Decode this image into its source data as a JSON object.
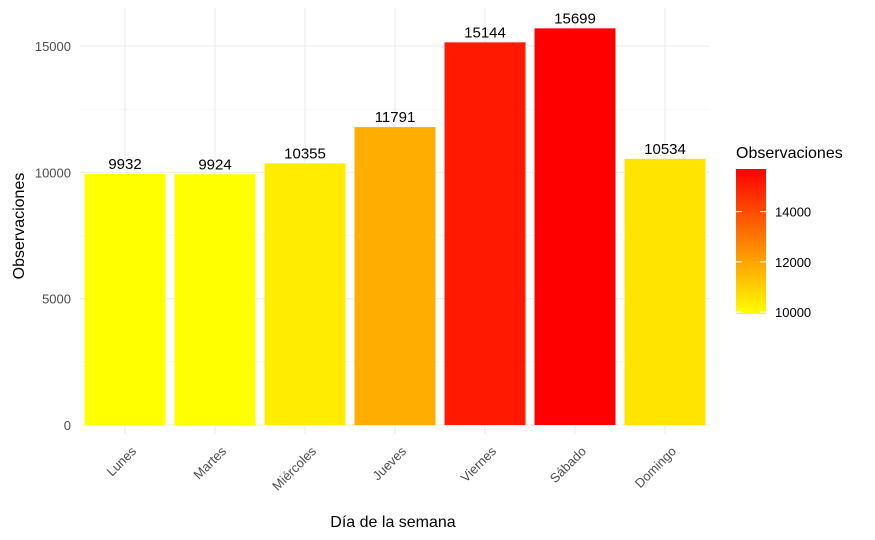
{
  "chart_data": {
    "type": "bar",
    "categories": [
      "Lunes",
      "Martes",
      "Miércoles",
      "Jueves",
      "Viernes",
      "Sábado",
      "Domingo"
    ],
    "values": [
      9932,
      9924,
      10355,
      11791,
      15144,
      15699,
      10534
    ],
    "data_labels": [
      "9932",
      "9924",
      "10355",
      "11791",
      "15144",
      "15699",
      "10534"
    ],
    "xlabel": "Día de la semana",
    "ylabel": "Observaciones",
    "ylim": [
      0,
      16500
    ],
    "y_ticks": [
      0,
      5000,
      10000,
      15000
    ],
    "y_tick_labels": [
      "0",
      "5000",
      "10000",
      "15000"
    ],
    "grid": true,
    "x_tick_rotation": 45,
    "legend": {
      "title": "Observaciones",
      "placement": "right",
      "type": "colorbar",
      "range": [
        9924,
        15699
      ],
      "ticks": [
        10000,
        12000,
        14000
      ],
      "tick_labels": [
        "10000",
        "12000",
        "14000"
      ],
      "color_low": "#ffff00",
      "color_high": "#ff0000"
    }
  }
}
